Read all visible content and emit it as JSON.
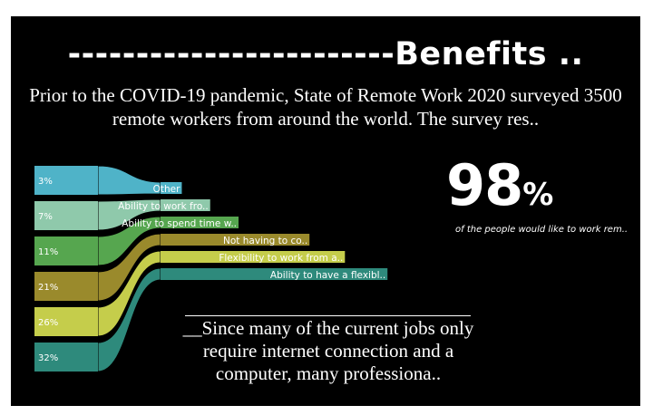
{
  "title": "------------------------Benefits ..",
  "intro": "Prior to the COVID-19 pandemic, State of Remote Work 2020 surveyed 3500 remote workers from around the world. The survey res..",
  "big_stat": {
    "value": "98",
    "unit": "%"
  },
  "stat_caption": "of the people would like to work rem..",
  "note": "__Since many of the current jobs only require internet connection and a computer, many professiona..",
  "chart_data": {
    "type": "bar",
    "categories": [
      "Other",
      "Ability to work fro..",
      "Ability to spend time w..",
      "Not having to co..",
      "Flexibility to work from a..",
      "Ability to have a flexibl.."
    ],
    "values": [
      3,
      7,
      11,
      21,
      26,
      32
    ],
    "value_labels": [
      "3%",
      "7%",
      "11%",
      "21%",
      "26%",
      "32%"
    ],
    "colors": [
      "#4fb3c8",
      "#8fc9ab",
      "#56a64f",
      "#9a8a2c",
      "#c5cd4b",
      "#2e8a7c"
    ],
    "title": "",
    "xlabel": "",
    "ylabel": ""
  }
}
